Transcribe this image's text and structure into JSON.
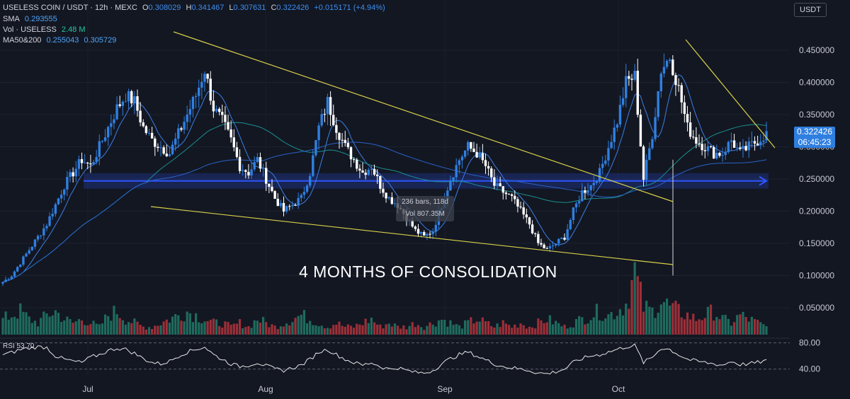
{
  "header": {
    "symbol": "USELESS COIN / USDT · 12h · MEXC",
    "open_label": "O",
    "open": "0.308029",
    "high_label": "H",
    "high": "0.341467",
    "low_label": "L",
    "low": "0.307631",
    "close_label": "C",
    "close": "0.322426",
    "change": "+0.015171 (+4.94%)",
    "sma_label": "SMA",
    "sma_value": "0.293555",
    "vol_label": "Vol · USELESS",
    "vol_value": "2.48 M",
    "ma_label": "MA50&200",
    "ma50": "0.255043",
    "ma200": "0.305729"
  },
  "currency_button": "USDT",
  "price_tag": {
    "price": "0.322426",
    "countdown": "06:45:23"
  },
  "tooltip": {
    "line1": "236 bars, 118d",
    "line2": "Vol 807.35M"
  },
  "annotation": "4 MONTHS OF CONSOLIDATION",
  "rsi_label": "RSI 53.70",
  "colors": {
    "background": "#131722",
    "up": "#2f7fe0",
    "down": "#ffffff",
    "vol_up": "#1f6b5e",
    "vol_down": "#9c2f38",
    "trendline": "#d8d14a",
    "support": "#2f55ff"
  },
  "chart_data": {
    "type": "candlestick",
    "y_ticks": [
      "0.450000",
      "0.400000",
      "0.350000",
      "0.300000",
      "0.250000",
      "0.200000",
      "0.150000",
      "0.100000",
      "0.050000"
    ],
    "y_range": [
      0.0,
      0.5
    ],
    "x_ticks": [
      "Jul",
      "Aug",
      "Sep",
      "Oct"
    ],
    "rsi_ticks": [
      "80.00",
      "40.00"
    ],
    "close_path": [
      0.09,
      0.1,
      0.12,
      0.14,
      0.16,
      0.18,
      0.21,
      0.24,
      0.26,
      0.28,
      0.27,
      0.3,
      0.33,
      0.36,
      0.38,
      0.37,
      0.33,
      0.31,
      0.3,
      0.29,
      0.32,
      0.35,
      0.38,
      0.42,
      0.36,
      0.34,
      0.31,
      0.27,
      0.26,
      0.28,
      0.25,
      0.22,
      0.2,
      0.21,
      0.22,
      0.26,
      0.33,
      0.37,
      0.33,
      0.3,
      0.28,
      0.26,
      0.27,
      0.24,
      0.22,
      0.21,
      0.19,
      0.17,
      0.16,
      0.17,
      0.21,
      0.25,
      0.28,
      0.3,
      0.29,
      0.27,
      0.24,
      0.23,
      0.22,
      0.2,
      0.18,
      0.15,
      0.14,
      0.15,
      0.16,
      0.2,
      0.23,
      0.24,
      0.26,
      0.3,
      0.34,
      0.4,
      0.41,
      0.25,
      0.32,
      0.42,
      0.44,
      0.39,
      0.33,
      0.31,
      0.3,
      0.29,
      0.29,
      0.31,
      0.29,
      0.3,
      0.31,
      0.32
    ],
    "volume_path": [
      0.4,
      0.5,
      0.6,
      0.4,
      0.3,
      0.5,
      0.6,
      0.4,
      0.3,
      0.4,
      0.3,
      0.2,
      0.5,
      0.6,
      0.4,
      0.3,
      0.2,
      0.2,
      0.3,
      0.4,
      0.5,
      0.6,
      0.5,
      0.4,
      0.3,
      0.3,
      0.2,
      0.3,
      0.2,
      0.4,
      0.3,
      0.2,
      0.3,
      0.4,
      0.5,
      0.4,
      0.3,
      0.2,
      0.3,
      0.2,
      0.2,
      0.3,
      0.4,
      0.2,
      0.3,
      0.2,
      0.2,
      0.3,
      0.2,
      0.3,
      0.4,
      0.3,
      0.2,
      0.3,
      0.4,
      0.3,
      0.2,
      0.3,
      0.2,
      0.3,
      0.2,
      0.3,
      0.4,
      0.3,
      0.2,
      0.3,
      0.4,
      0.5,
      0.6,
      0.5,
      0.6,
      0.8,
      1.6,
      0.7,
      0.6,
      0.9,
      0.7,
      0.6,
      0.5,
      0.4,
      0.5,
      0.6,
      0.4,
      0.3,
      0.5,
      0.4,
      0.3,
      0.2
    ],
    "rsi_path": [
      62,
      65,
      70,
      72,
      74,
      73,
      60,
      55,
      52,
      50,
      58,
      62,
      68,
      72,
      70,
      64,
      56,
      50,
      48,
      52,
      60,
      66,
      70,
      74,
      62,
      55,
      48,
      44,
      46,
      50,
      45,
      40,
      38,
      42,
      46,
      55,
      66,
      70,
      62,
      55,
      50,
      46,
      50,
      44,
      40,
      42,
      38,
      35,
      34,
      38,
      48,
      56,
      62,
      66,
      60,
      54,
      48,
      44,
      42,
      40,
      38,
      34,
      33,
      36,
      40,
      50,
      56,
      60,
      62,
      66,
      70,
      74,
      76,
      50,
      58,
      72,
      70,
      62,
      55,
      52,
      50,
      48,
      46,
      52,
      47,
      48,
      50,
      53
    ]
  }
}
